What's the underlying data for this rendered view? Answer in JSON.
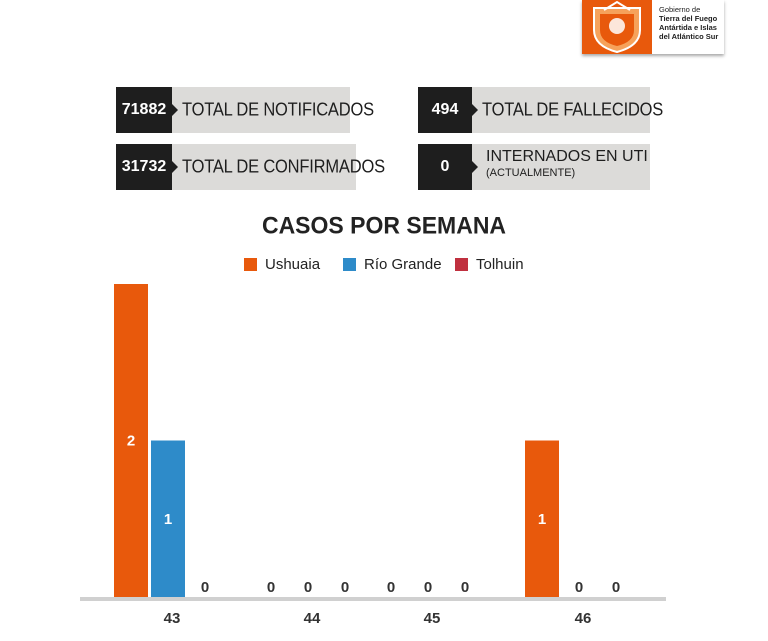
{
  "logo": {
    "text_line1": "Gobierno de",
    "text_line2": "Tierra del Fuego",
    "text_line3": "Antártida e Islas",
    "text_line4": "del Atlántico Sur"
  },
  "stats": {
    "notificados": {
      "value": "71882",
      "label": "TOTAL DE NOTIFICADOS"
    },
    "confirmados": {
      "value": "31732",
      "label": "TOTAL DE CONFIRMADOS"
    },
    "fallecidos": {
      "value": "494",
      "label": "TOTAL DE FALLECIDOS"
    },
    "uti": {
      "value": "0",
      "label": "INTERNADOS EN UTI",
      "sublabel": "(ACTUALMENTE)"
    }
  },
  "colors": {
    "ushuaia": "#e8590c",
    "rio_grande": "#2e8bc9",
    "tolhuin": "#c0303f",
    "axis": "#d0d0d0"
  },
  "chart_data": {
    "type": "bar",
    "title": "CASOS POR SEMANA",
    "categories": [
      "43",
      "44",
      "45",
      "46"
    ],
    "series": [
      {
        "name": "Ushuaia",
        "values": [
          2,
          0,
          0,
          1
        ]
      },
      {
        "name": "Río Grande",
        "values": [
          1,
          0,
          0,
          0
        ]
      },
      {
        "name": "Tolhuin",
        "values": [
          0,
          0,
          0,
          0
        ]
      }
    ],
    "ylim": [
      0,
      2
    ],
    "legend": "top-center",
    "grid": false
  }
}
